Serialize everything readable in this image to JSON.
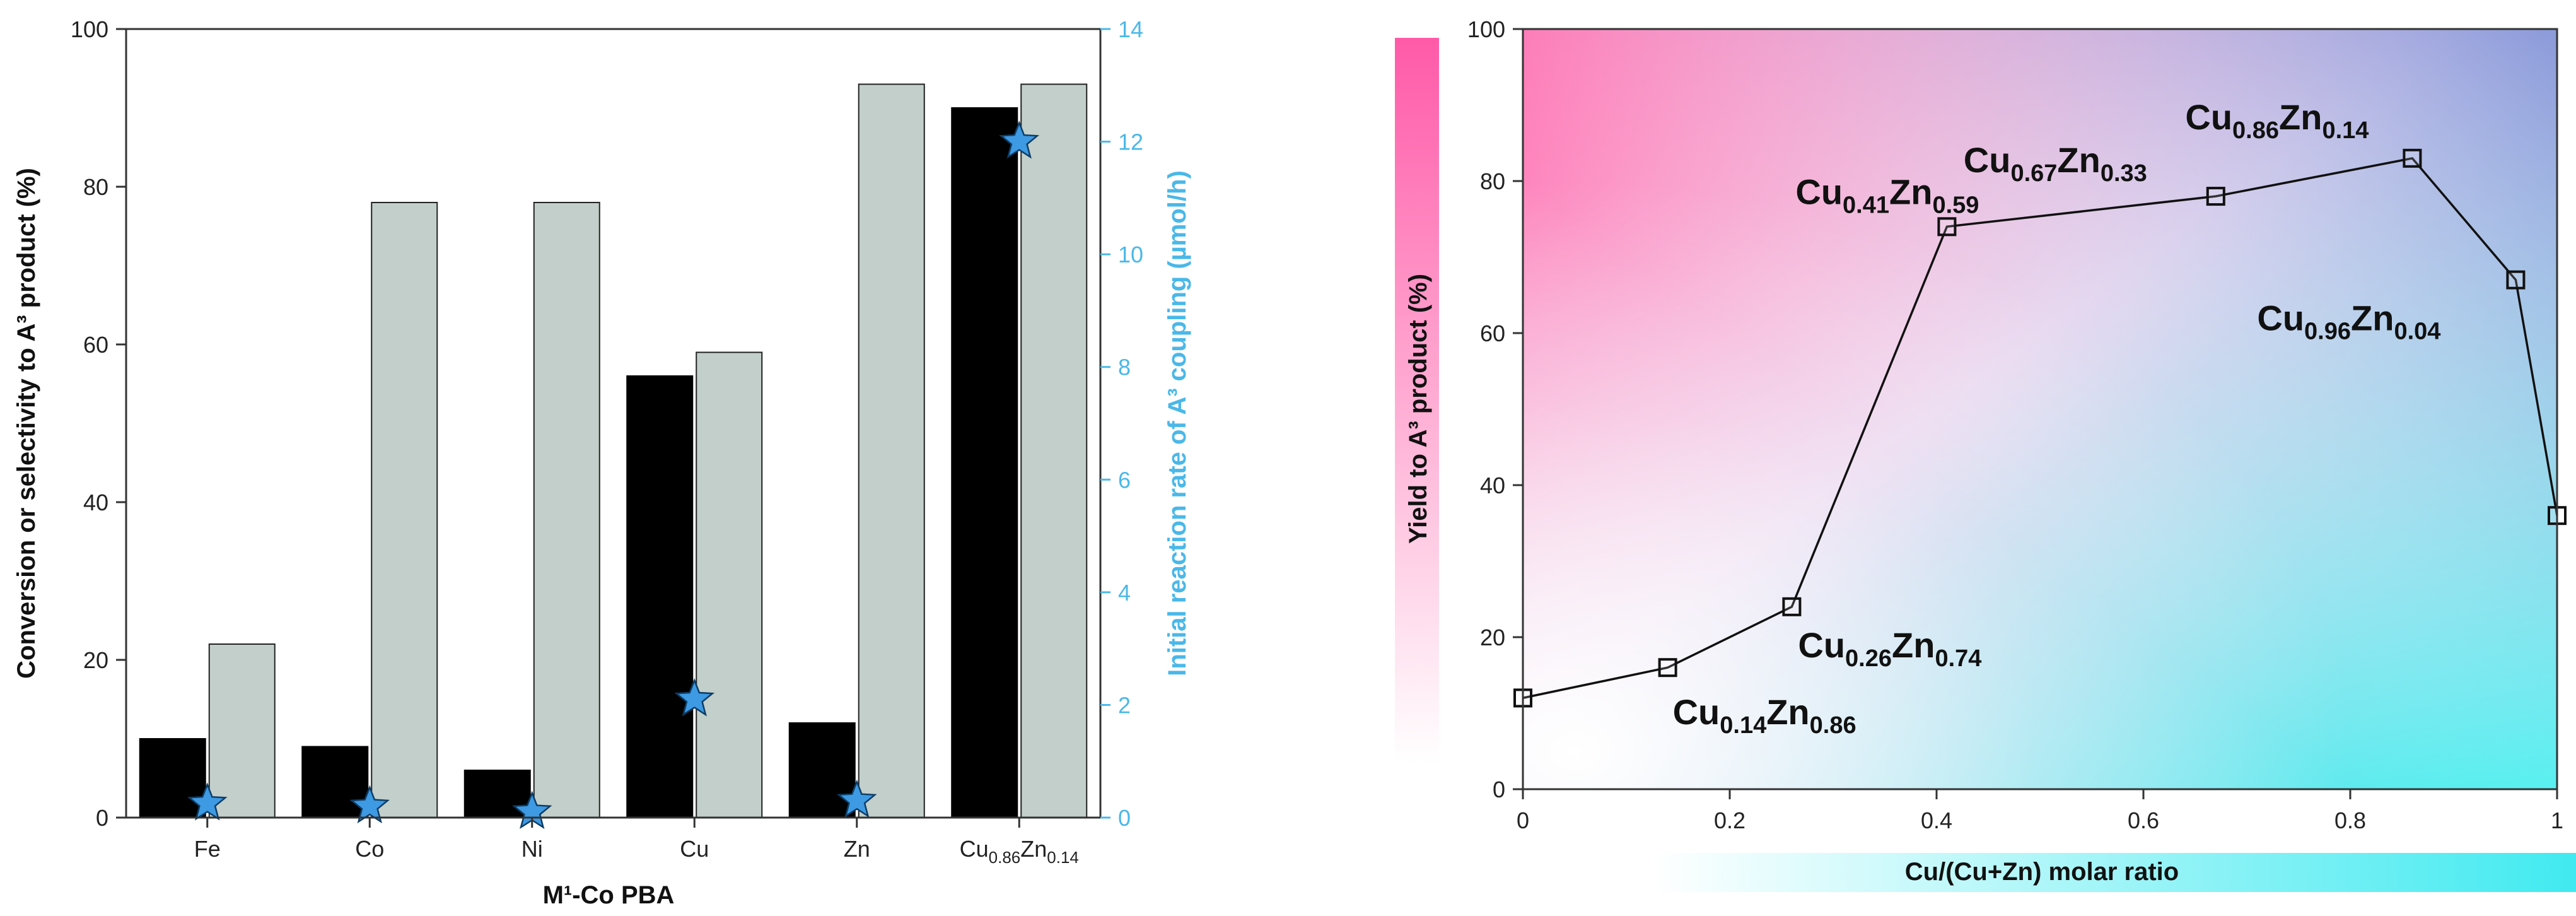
{
  "colors": {
    "primary_bar": "#000000",
    "secondary_bar": "#c2cfca",
    "star": "#3d9ae3",
    "right_axis": "#4ab8e8",
    "pink": "#ff79b4",
    "cyan": "#54ecf0"
  },
  "chart_data": [
    {
      "type": "bar",
      "title": "",
      "xlabel": "M¹-Co PBA",
      "ylabel": "Conversion or selectivity to A³ product (%)",
      "y2label": "Initial reaction rate of A³ coupling (µmol/h)",
      "ylim": [
        0,
        100
      ],
      "y2lim": [
        0,
        14
      ],
      "yticks": [
        "0",
        "20",
        "40",
        "60",
        "80",
        "100"
      ],
      "y2ticks": [
        "0",
        "2",
        "4",
        "6",
        "8",
        "10",
        "12",
        "14"
      ],
      "categories": [
        {
          "base": "Fe"
        },
        {
          "base": "Co"
        },
        {
          "base": "Ni"
        },
        {
          "base": "Cu"
        },
        {
          "base": "Zn"
        },
        {
          "base": "Cu",
          "sub1": "0.86",
          "el2": "Zn",
          "sub2": "0.14"
        }
      ],
      "series": [
        {
          "name": "Conversion",
          "axis": "left",
          "values": [
            10,
            9,
            6,
            56,
            12,
            90
          ]
        },
        {
          "name": "Selectivity",
          "axis": "left",
          "values": [
            22,
            78,
            78,
            59,
            93,
            93
          ]
        },
        {
          "name": "Initial reaction rate",
          "axis": "right",
          "marker": "star",
          "values": [
            0.25,
            0.2,
            0.1,
            2.1,
            0.3,
            12.0
          ]
        }
      ]
    },
    {
      "type": "line",
      "title": "",
      "xlabel": "Cu/(Cu+Zn) molar ratio",
      "ylabel": "Yield to A³ product (%)",
      "xlim": [
        0,
        1
      ],
      "ylim": [
        0,
        100
      ],
      "xticks": [
        "0",
        "0.2",
        "0.4",
        "0.6",
        "0.8",
        "1"
      ],
      "yticks": [
        "0",
        "20",
        "40",
        "60",
        "80",
        "100"
      ],
      "marker": "open-square",
      "x": [
        0,
        0.14,
        0.26,
        0.41,
        0.67,
        0.86,
        0.96,
        1.0
      ],
      "y": [
        12,
        16,
        24,
        74,
        78,
        83,
        67,
        36
      ],
      "annotations": [
        {
          "el1": "Cu",
          "sub1": "0.14",
          "el2": "Zn",
          "sub2": "0.86"
        },
        {
          "el1": "Cu",
          "sub1": "0.26",
          "el2": "Zn",
          "sub2": "0.74"
        },
        {
          "el1": "Cu",
          "sub1": "0.41",
          "el2": "Zn",
          "sub2": "0.59"
        },
        {
          "el1": "Cu",
          "sub1": "0.67",
          "el2": "Zn",
          "sub2": "0.33"
        },
        {
          "el1": "Cu",
          "sub1": "0.86",
          "el2": "Zn",
          "sub2": "0.14"
        },
        {
          "el1": "Cu",
          "sub1": "0.96",
          "el2": "Zn",
          "sub2": "0.04"
        }
      ]
    }
  ]
}
